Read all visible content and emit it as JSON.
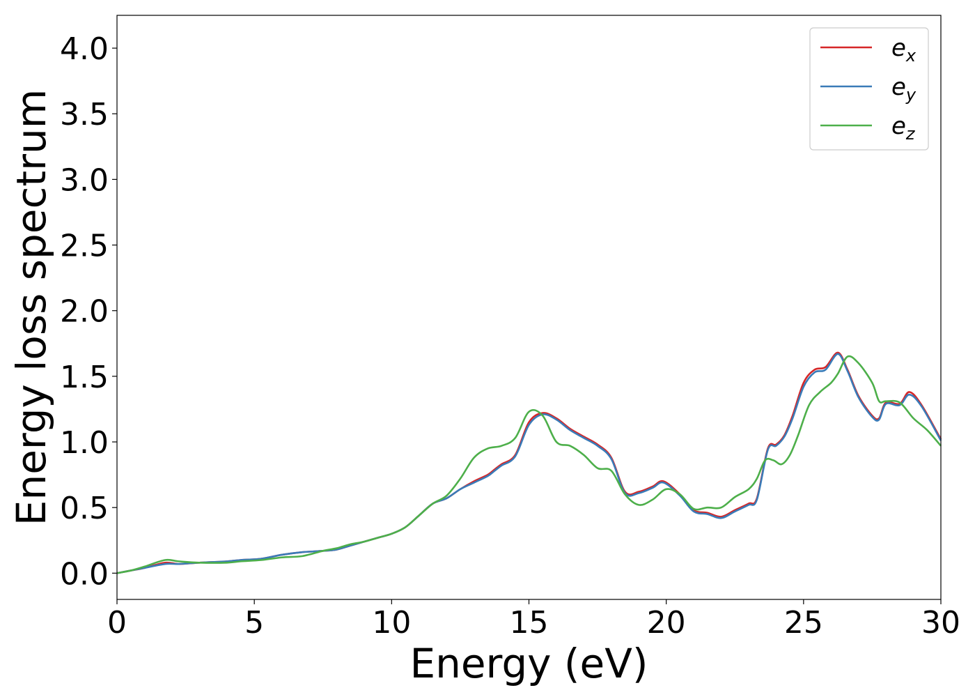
{
  "chart_data": {
    "type": "line",
    "title": "",
    "xlabel": "Energy (eV)",
    "ylabel": "Energy loss spectrum",
    "xlim": [
      0,
      30
    ],
    "ylim": [
      -0.2,
      4.25
    ],
    "xticks": [
      0,
      5,
      10,
      15,
      20,
      25,
      30
    ],
    "xtick_labels": [
      "0",
      "5",
      "10",
      "15",
      "20",
      "25",
      "30"
    ],
    "yticks": [
      0.0,
      0.5,
      1.0,
      1.5,
      2.0,
      2.5,
      3.0,
      3.5,
      4.0
    ],
    "ytick_labels": [
      "0.0",
      "0.5",
      "1.0",
      "1.5",
      "2.0",
      "2.5",
      "3.0",
      "3.5",
      "4.0"
    ],
    "grid": false,
    "legend_position": "top-right",
    "series": [
      {
        "name": "e_x",
        "legend_base": "e",
        "legend_sub": "x",
        "color": "#d62728",
        "x": [
          0,
          0.5,
          1,
          1.75,
          2.25,
          3,
          4,
          4.5,
          5.25,
          6,
          6.75,
          7.5,
          8,
          8.5,
          9,
          9.5,
          10,
          10.5,
          11,
          11.5,
          12,
          12.5,
          13,
          13.5,
          13.75,
          14,
          14.5,
          15,
          15.5,
          16,
          16.5,
          17,
          17.5,
          18,
          18.5,
          19,
          19.5,
          19.9,
          20.5,
          21,
          21.5,
          22,
          22.5,
          23,
          23.3,
          23.7,
          24,
          24.3,
          24.6,
          25,
          25.4,
          25.8,
          26.25,
          26.6,
          27,
          27.5,
          27.75,
          28,
          28.5,
          28.85,
          29.3,
          30
        ],
        "y": [
          0.0,
          0.02,
          0.04,
          0.08,
          0.07,
          0.08,
          0.09,
          0.1,
          0.11,
          0.14,
          0.16,
          0.17,
          0.18,
          0.21,
          0.24,
          0.27,
          0.3,
          0.35,
          0.44,
          0.53,
          0.57,
          0.64,
          0.7,
          0.75,
          0.79,
          0.83,
          0.9,
          1.15,
          1.22,
          1.18,
          1.1,
          1.04,
          0.98,
          0.88,
          0.62,
          0.62,
          0.66,
          0.7,
          0.6,
          0.48,
          0.46,
          0.43,
          0.48,
          0.53,
          0.57,
          0.95,
          0.98,
          1.05,
          1.2,
          1.45,
          1.55,
          1.57,
          1.68,
          1.55,
          1.35,
          1.2,
          1.18,
          1.3,
          1.29,
          1.38,
          1.28,
          1.02
        ]
      },
      {
        "name": "e_y",
        "legend_base": "e",
        "legend_sub": "y",
        "color": "#3a7bb8",
        "x": [
          0,
          0.5,
          1,
          1.75,
          2.25,
          3,
          4,
          4.5,
          5.25,
          6,
          6.75,
          7.5,
          8,
          8.5,
          9,
          9.5,
          10,
          10.5,
          11,
          11.5,
          12,
          12.5,
          13,
          13.5,
          13.75,
          14,
          14.5,
          15,
          15.5,
          16,
          16.5,
          17,
          17.5,
          18,
          18.5,
          19,
          19.5,
          19.9,
          20.5,
          21,
          21.5,
          22,
          22.5,
          23,
          23.3,
          23.7,
          24,
          24.3,
          24.6,
          25,
          25.4,
          25.8,
          26.25,
          26.6,
          27,
          27.5,
          27.75,
          28,
          28.5,
          28.85,
          29.3,
          30
        ],
        "y": [
          0.0,
          0.02,
          0.04,
          0.07,
          0.07,
          0.08,
          0.09,
          0.1,
          0.11,
          0.14,
          0.16,
          0.17,
          0.18,
          0.21,
          0.24,
          0.27,
          0.3,
          0.35,
          0.44,
          0.53,
          0.57,
          0.64,
          0.69,
          0.74,
          0.78,
          0.82,
          0.89,
          1.13,
          1.21,
          1.17,
          1.09,
          1.03,
          0.97,
          0.87,
          0.61,
          0.61,
          0.65,
          0.69,
          0.59,
          0.47,
          0.45,
          0.42,
          0.47,
          0.52,
          0.56,
          0.94,
          0.97,
          1.04,
          1.18,
          1.42,
          1.53,
          1.55,
          1.67,
          1.54,
          1.34,
          1.19,
          1.17,
          1.29,
          1.28,
          1.36,
          1.27,
          1.01
        ]
      },
      {
        "name": "e_z",
        "legend_base": "e",
        "legend_sub": "z",
        "color": "#4daf4a",
        "x": [
          0,
          0.5,
          1,
          1.75,
          2.25,
          3,
          4,
          4.5,
          5.25,
          6,
          6.75,
          7.5,
          8,
          8.5,
          9,
          9.5,
          10,
          10.5,
          11,
          11.5,
          12,
          12.5,
          13,
          13.5,
          14,
          14.5,
          15,
          15.5,
          16,
          16.5,
          17,
          17.5,
          18,
          18.5,
          19,
          19.5,
          20,
          20.5,
          21,
          21.5,
          22,
          22.5,
          23,
          23.3,
          23.6,
          23.9,
          24.2,
          24.5,
          24.8,
          25.2,
          25.6,
          26,
          26.25,
          26.6,
          27,
          27.5,
          27.75,
          28,
          28.5,
          29,
          29.5,
          30
        ],
        "y": [
          0.0,
          0.02,
          0.05,
          0.1,
          0.09,
          0.08,
          0.08,
          0.09,
          0.1,
          0.12,
          0.13,
          0.17,
          0.19,
          0.22,
          0.24,
          0.27,
          0.3,
          0.35,
          0.44,
          0.53,
          0.59,
          0.72,
          0.88,
          0.95,
          0.97,
          1.03,
          1.23,
          1.2,
          1.0,
          0.97,
          0.9,
          0.8,
          0.78,
          0.6,
          0.52,
          0.56,
          0.64,
          0.6,
          0.49,
          0.5,
          0.5,
          0.58,
          0.64,
          0.72,
          0.86,
          0.86,
          0.83,
          0.9,
          1.05,
          1.28,
          1.38,
          1.45,
          1.52,
          1.65,
          1.6,
          1.45,
          1.31,
          1.31,
          1.3,
          1.18,
          1.09,
          0.97
        ]
      }
    ]
  }
}
